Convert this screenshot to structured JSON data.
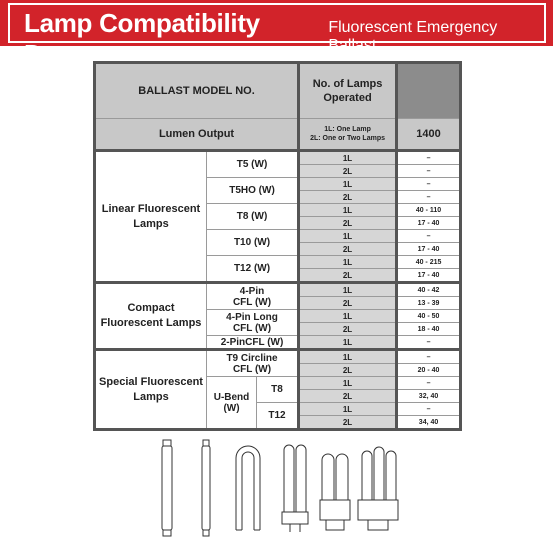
{
  "banner": {
    "title": "Lamp Compatibility Data:",
    "subtitle": "Fluorescent Emergency Ballast"
  },
  "table": {
    "header": {
      "ballast_model": "BALLAST MODEL NO.",
      "lamps_operated": "No. of Lamps Operated",
      "lumen_output": "Lumen Output",
      "legend_1L": "1L: One Lamp",
      "legend_2L": "2L: One or Two Lamps",
      "lumen_value": "1400"
    },
    "groups": {
      "linear": "Linear Fluorescent Lamps",
      "compact": "Compact Fluorescent Lamps",
      "special": "Special Fluorescent Lamps"
    },
    "types": {
      "t5": "T5 (W)",
      "t5ho": "T5HO (W)",
      "t8": "T8 (W)",
      "t10": "T10 (W)",
      "t12": "T12 (W)",
      "pin4": "4-Pin CFL (W)",
      "pin4long": "4-Pin Long CFL (W)",
      "pin2": "2-PinCFL (W)",
      "t9": "T9 Circline CFL (W)",
      "ubend": "U-Bend (W)",
      "ubend_t8": "T8",
      "ubend_t12": "T12"
    },
    "rows": [
      {
        "count": "1L",
        "value": "–"
      },
      {
        "count": "2L",
        "value": "–"
      },
      {
        "count": "1L",
        "value": "–"
      },
      {
        "count": "2L",
        "value": "–"
      },
      {
        "count": "1L",
        "value": "40 - 110"
      },
      {
        "count": "2L",
        "value": "17 - 40"
      },
      {
        "count": "1L",
        "value": "–"
      },
      {
        "count": "2L",
        "value": "17 - 40"
      },
      {
        "count": "1L",
        "value": "40 - 215"
      },
      {
        "count": "2L",
        "value": "17 - 40"
      },
      {
        "count": "1L",
        "value": "40 - 42"
      },
      {
        "count": "2L",
        "value": "13 - 39"
      },
      {
        "count": "1L",
        "value": "40 - 50"
      },
      {
        "count": "2L",
        "value": "18 - 40"
      },
      {
        "count": "1L",
        "value": "–"
      },
      {
        "count": "1L",
        "value": "–"
      },
      {
        "count": "2L",
        "value": "20 - 40"
      },
      {
        "count": "1L",
        "value": "–"
      },
      {
        "count": "2L",
        "value": "32, 40"
      },
      {
        "count": "1L",
        "value": "–"
      },
      {
        "count": "2L",
        "value": "34, 40"
      }
    ]
  },
  "lamp_icons": [
    "t8-tube-lamp",
    "t5-tube-lamp",
    "u-bend-lamp",
    "2-pin-cfl-lamp",
    "4-pin-cfl-lamp",
    "4-pin-quad-cfl-lamp"
  ]
}
